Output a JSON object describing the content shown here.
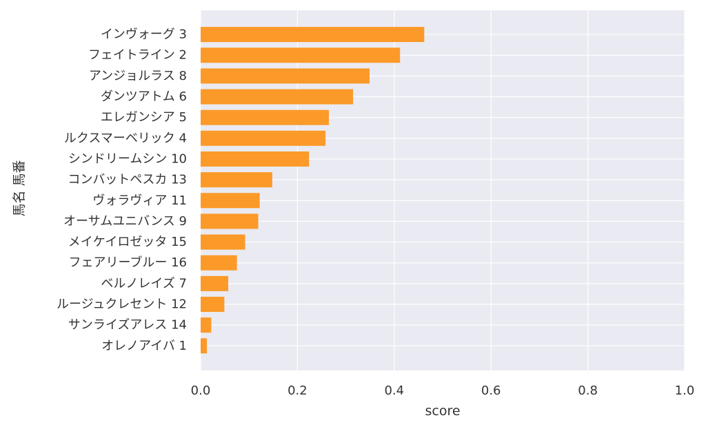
{
  "chart_data": {
    "type": "bar",
    "orientation": "horizontal",
    "xlabel": "score",
    "ylabel": "馬名 馬番",
    "xlim": [
      0.0,
      1.0
    ],
    "xticks": [
      "0.0",
      "0.2",
      "0.4",
      "0.6",
      "0.8",
      "1.0"
    ],
    "grid": true,
    "categories": [
      "インヴォーグ 3",
      "フェイトライン 2",
      "アンジョルラス 8",
      "ダンツアトム 6",
      "エレガンシア 5",
      "ルクスマーベリック 4",
      "シンドリームシン 10",
      "コンバットペスカ 13",
      "ヴォラヴィア 11",
      "オーサムユニバンス 9",
      "メイケイロゼッタ 15",
      "フェアリーブルー 16",
      "ベルノレイズ 7",
      "ルージュクレセント 12",
      "サンライズアレス 14",
      "オレノアイバ 1"
    ],
    "values": [
      0.462,
      0.412,
      0.349,
      0.315,
      0.265,
      0.258,
      0.224,
      0.148,
      0.122,
      0.119,
      0.092,
      0.075,
      0.057,
      0.049,
      0.022,
      0.013
    ],
    "colors": {
      "bar": "#fb9a29",
      "plot_bg": "#eaeaf2",
      "grid": "#ffffff",
      "text": "#333333"
    }
  }
}
